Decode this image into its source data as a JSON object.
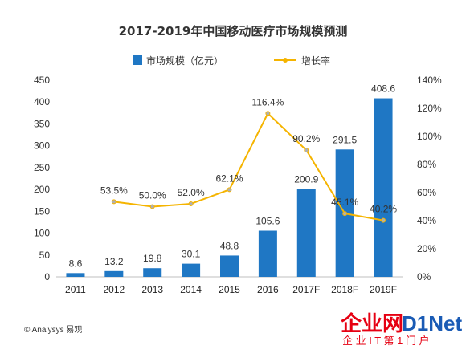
{
  "chart_data": {
    "type": "bar",
    "title": "2017-2019年中国移动医疗市场规模预测",
    "categories": [
      "2011",
      "2012",
      "2013",
      "2014",
      "2015",
      "2016",
      "2017F",
      "2018F",
      "2019F"
    ],
    "series": [
      {
        "name": "市场规模（亿元）",
        "type": "bar",
        "axis": "left",
        "values": [
          8.6,
          13.2,
          19.8,
          30.1,
          48.8,
          105.6,
          200.9,
          291.5,
          408.6
        ],
        "labels": [
          "8.6",
          "13.2",
          "19.8",
          "30.1",
          "48.8",
          "105.6",
          "200.9",
          "291.5",
          "408.6"
        ],
        "color": "#1f77c4"
      },
      {
        "name": "增长率",
        "type": "line",
        "axis": "right",
        "values": [
          null,
          53.5,
          50.0,
          52.0,
          62.1,
          116.4,
          90.2,
          45.1,
          40.2
        ],
        "labels": [
          "",
          "53.5%",
          "50.0%",
          "52.0%",
          "62.1%",
          "116.4%",
          "90.2%",
          "45.1%",
          "40.2%"
        ],
        "color": "#f5b400"
      }
    ],
    "y_left": {
      "min": 0,
      "max": 450,
      "ticks": [
        "0",
        "50",
        "100",
        "150",
        "200",
        "250",
        "300",
        "350",
        "400",
        "450"
      ]
    },
    "y_right": {
      "min": 0,
      "max": 140,
      "ticks": [
        "0%",
        "20%",
        "40%",
        "60%",
        "80%",
        "100%",
        "120%",
        "140%"
      ]
    },
    "legend_position": "top-center",
    "grid": false
  },
  "source": "© Analysys 易观",
  "watermark": {
    "brand": "企业网",
    "brand2": "D1Net",
    "sub": "企 业 I T 第 1 门 户"
  }
}
